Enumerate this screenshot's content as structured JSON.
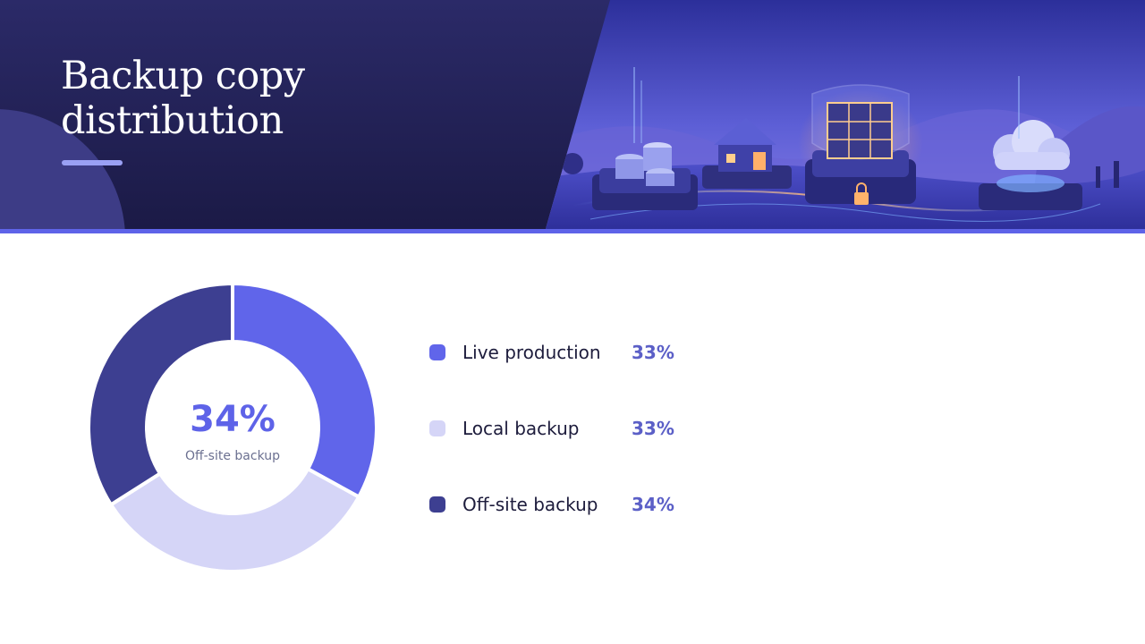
{
  "slide": {
    "title": "Backup copy distribution"
  },
  "hero": {
    "image_description_icons": [
      "database-icon",
      "house-icon",
      "secure-cube-icon",
      "padlock-icon",
      "cloud-icon"
    ]
  },
  "colors": {
    "header_bg": "#22215a",
    "accent": "#5e63e8",
    "live_production": "#6065ea",
    "local_backup": "#d5d5f7",
    "offsite_backup": "#3d3f91"
  },
  "chart_data": {
    "type": "pie",
    "donut": true,
    "title": "",
    "center": {
      "value": "34%",
      "label": "Off-site backup"
    },
    "slices": [
      {
        "name": "Live production",
        "value": 33,
        "label": "33%",
        "color": "#6065ea"
      },
      {
        "name": "Local backup",
        "value": 33,
        "label": "33%",
        "color": "#d5d5f7"
      },
      {
        "name": "Off-site backup",
        "value": 34,
        "label": "34%",
        "color": "#3d3f91"
      }
    ],
    "legend_position": "right"
  }
}
